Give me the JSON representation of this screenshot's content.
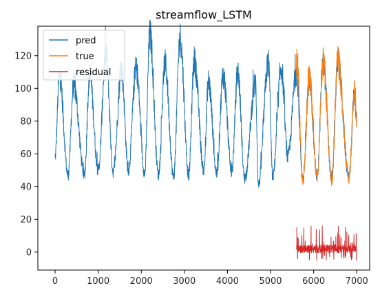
{
  "chart_data": {
    "type": "line",
    "title": "streamflow_LSTM",
    "xlabel": "",
    "ylabel": "",
    "xlim": [
      -400,
      7300
    ],
    "ylim": [
      -11,
      138
    ],
    "x_ticks": [
      0,
      1000,
      2000,
      3000,
      4000,
      5000,
      6000,
      7000
    ],
    "y_ticks": [
      0,
      20,
      40,
      60,
      80,
      100,
      120
    ],
    "grid": false,
    "legend_position": "upper-left",
    "series": [
      {
        "name": "pred",
        "color": "#1f77b4",
        "x_start": 0,
        "x_end": 7000,
        "seasonal_peaks": [
          [
            100,
            108
          ],
          [
            430,
            102
          ],
          [
            800,
            108
          ],
          [
            1180,
            121
          ],
          [
            1540,
            112
          ],
          [
            1880,
            112
          ],
          [
            2200,
            133
          ],
          [
            2550,
            115
          ],
          [
            2900,
            131
          ],
          [
            3230,
            117
          ],
          [
            3560,
            104
          ],
          [
            3900,
            108
          ],
          [
            4240,
            110
          ],
          [
            4650,
            103
          ],
          [
            4950,
            116
          ],
          [
            5250,
            112
          ],
          [
            5600,
            110
          ],
          [
            5900,
            106
          ],
          [
            6220,
            116
          ],
          [
            6560,
            116
          ],
          [
            6950,
            98
          ]
        ],
        "seasonal_troughs": [
          [
            0,
            58
          ],
          [
            300,
            47
          ],
          [
            680,
            47
          ],
          [
            1000,
            50
          ],
          [
            1350,
            49
          ],
          [
            1700,
            50
          ],
          [
            2080,
            48
          ],
          [
            2400,
            47
          ],
          [
            2750,
            46
          ],
          [
            3100,
            47
          ],
          [
            3450,
            50
          ],
          [
            3750,
            48
          ],
          [
            4100,
            49
          ],
          [
            4400,
            45
          ],
          [
            4720,
            41
          ],
          [
            5050,
            46
          ],
          [
            5400,
            58
          ],
          [
            5750,
            44
          ],
          [
            6080,
            46
          ],
          [
            6420,
            44
          ],
          [
            6820,
            45
          ],
          [
            7000,
            80
          ]
        ]
      },
      {
        "name": "true",
        "color": "#ff7f0e",
        "x_start": 5600,
        "x_end": 7000,
        "seasonal_peaks": [
          [
            5620,
            115
          ],
          [
            5900,
            106
          ],
          [
            6220,
            116
          ],
          [
            6560,
            116
          ],
          [
            6950,
            98
          ]
        ],
        "seasonal_troughs": [
          [
            5750,
            43
          ],
          [
            6080,
            46
          ],
          [
            6420,
            43
          ],
          [
            6820,
            45
          ],
          [
            7000,
            80
          ]
        ]
      },
      {
        "name": "residual",
        "color": "#d62728",
        "x_start": 5600,
        "x_end": 7000,
        "baseline": 2,
        "min": -5,
        "max": 16
      }
    ]
  }
}
